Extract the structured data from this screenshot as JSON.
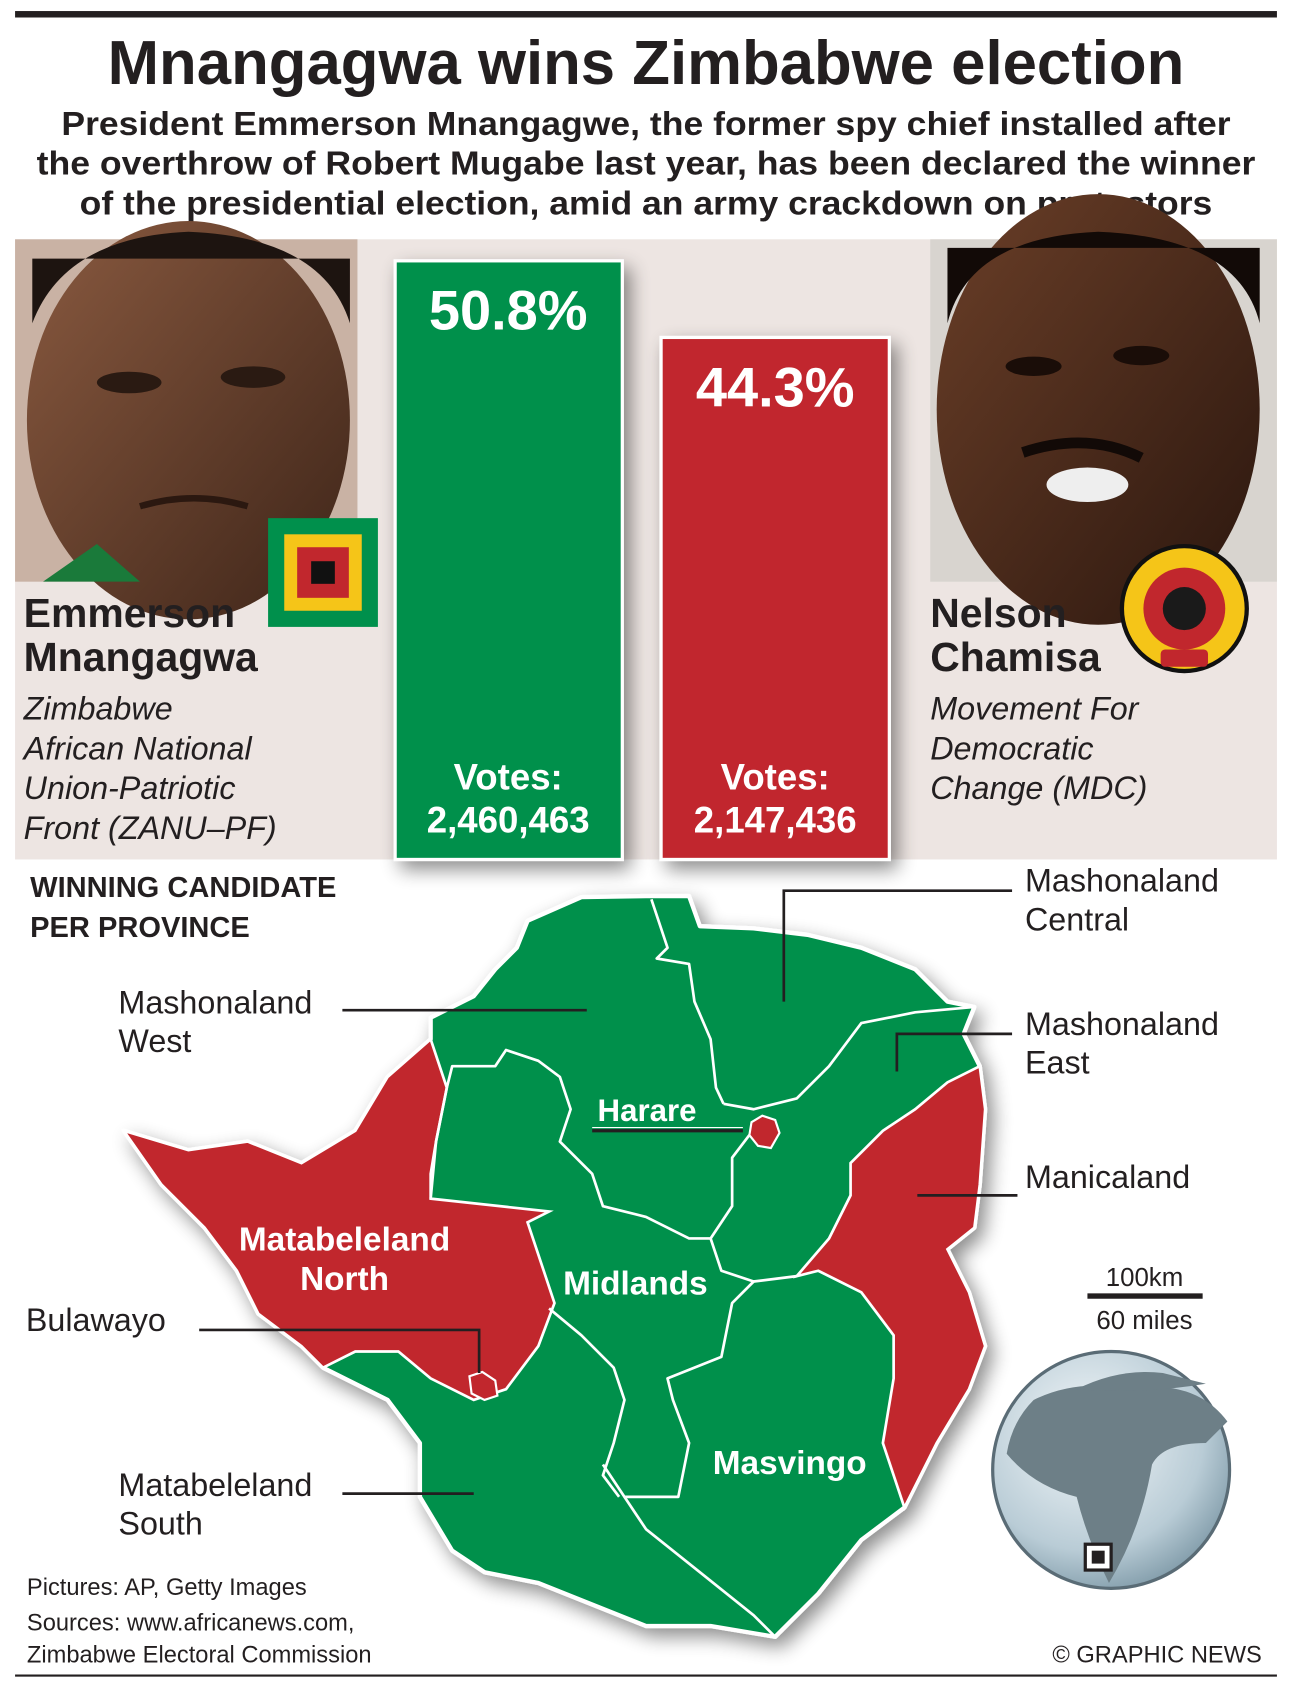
{
  "header": {
    "title": "Mnangagwa wins Zimbabwe election",
    "subtitle_lines": [
      "President Emmerson Mnangagwe, the former spy chief installed after",
      "the overthrow of Robert Mugabe last year, has been declared the winner",
      "of the presidential election, amid an army crackdown on protestors"
    ]
  },
  "candidates": [
    {
      "name_lines": [
        "Emmerson",
        "Mnangagwa"
      ],
      "party_lines": [
        "Zimbabwe",
        "African National",
        "Union-Patriotic",
        "Front (ZANU–PF)"
      ],
      "percent_label": "50.8%",
      "votes_label": "Votes:",
      "votes": "2,460,463",
      "color": "#00904c",
      "logo": "zanu-pf-flag-logo"
    },
    {
      "name_lines": [
        "Nelson",
        "Chamisa"
      ],
      "party_lines": [
        "Movement For",
        "Democratic",
        "Change (MDC)"
      ],
      "percent_label": "44.3%",
      "votes_label": "Votes:",
      "votes": "2,147,436",
      "color": "#c1272d",
      "logo": "mdc-logo",
      "logo_text": "MOVEMENT FOR DEMOCRATIC CHANGE MDC"
    }
  ],
  "chart_data": {
    "type": "bar",
    "categories": [
      "Emmerson Mnangagwa",
      "Nelson Chamisa"
    ],
    "values": [
      50.8,
      44.3
    ],
    "votes": [
      2460463,
      2147436
    ],
    "unit": "%",
    "colors": [
      "#00904c",
      "#c1272d"
    ]
  },
  "map": {
    "heading_lines": [
      "Winning Candidate",
      "per Province"
    ],
    "provinces": {
      "mashonaland_central": {
        "label_lines": [
          "Mashonaland",
          "Central"
        ],
        "winner_color": "#00904c"
      },
      "mashonaland_west": {
        "label_lines": [
          "Mashonaland",
          "West"
        ],
        "winner_color": "#00904c"
      },
      "mashonaland_east": {
        "label_lines": [
          "Mashonaland",
          "East"
        ],
        "winner_color": "#00904c"
      },
      "manicaland": {
        "label_lines": [
          "Manicaland"
        ],
        "winner_color": "#c1272d"
      },
      "harare": {
        "label_lines": [
          "Harare"
        ],
        "winner_color": "#c1272d"
      },
      "matabeleland_north": {
        "label_lines": [
          "Matabeleland",
          "North"
        ],
        "winner_color": "#c1272d"
      },
      "midlands": {
        "label_lines": [
          "Midlands"
        ],
        "winner_color": "#00904c"
      },
      "masvingo": {
        "label_lines": [
          "Masvingo"
        ],
        "winner_color": "#00904c"
      },
      "bulawayo": {
        "label_lines": [
          "Bulawayo"
        ],
        "winner_color": "#c1272d"
      },
      "matabeleland_south": {
        "label_lines": [
          "Matabeleland",
          "South"
        ],
        "winner_color": "#00904c"
      }
    },
    "scale": {
      "km": "100km",
      "miles": "60 miles"
    }
  },
  "footer": {
    "pictures": "Pictures: AP, Getty Images",
    "sources_lines": [
      "Sources: www.africanews.com,",
      "Zimbabwe Electoral Commission"
    ],
    "copyright": "© GRAPHIC NEWS"
  }
}
